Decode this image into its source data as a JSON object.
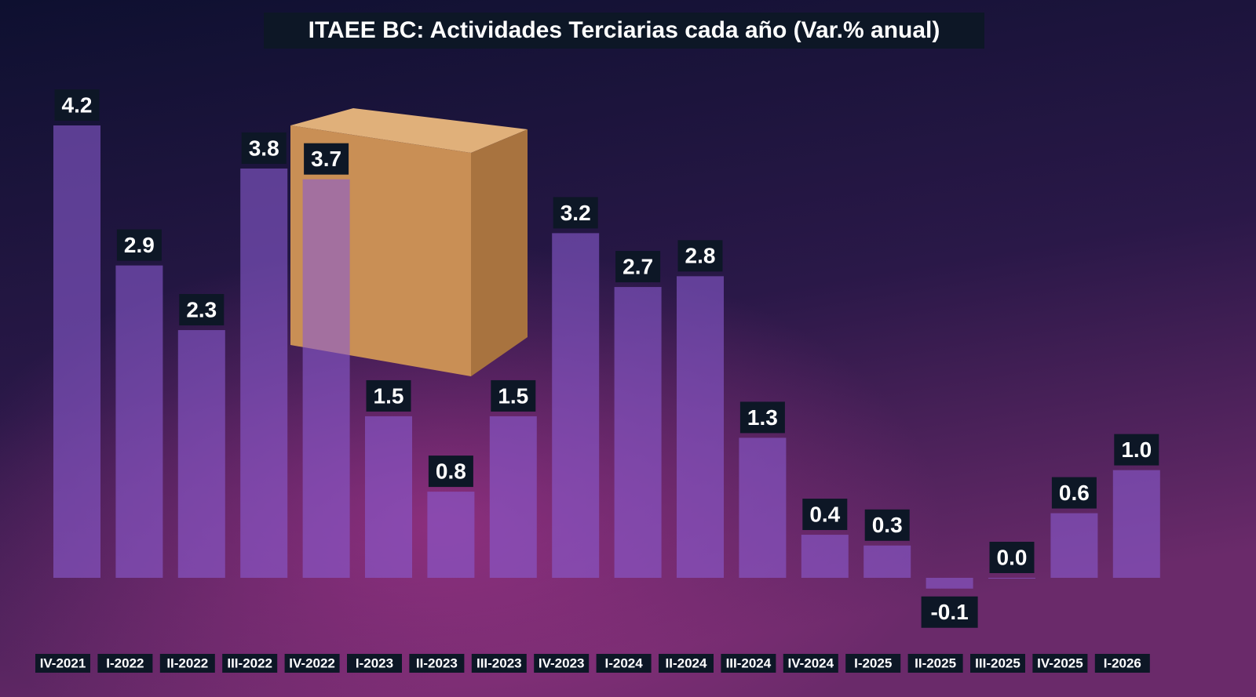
{
  "chart_data": {
    "type": "bar",
    "title": "ITAEE BC: Actividades Terciarias cada año (Var.% anual)",
    "categories": [
      "IV-2021",
      "I-2022",
      "II-2022",
      "III-2022",
      "IV-2022",
      "I-2023",
      "II-2023",
      "III-2023",
      "IV-2023",
      "I-2024",
      "II-2024",
      "III-2024",
      "IV-2024",
      "I-2025",
      "II-2025",
      "III-2025",
      "IV-2025",
      "I-2026"
    ],
    "values": [
      4.2,
      2.9,
      2.3,
      3.8,
      3.7,
      1.5,
      0.8,
      1.5,
      3.2,
      2.7,
      2.8,
      1.3,
      0.4,
      0.3,
      -0.1,
      0.0,
      0.6,
      1.0
    ],
    "value_labels": [
      "4.2",
      "2.9",
      "2.3",
      "3.8",
      "3.7",
      "1.5",
      "0.8",
      "1.5",
      "3.2",
      "2.7",
      "2.8",
      "1.3",
      "0.4",
      "0.3",
      "-0.1",
      "0.0",
      "0.6",
      "1.0"
    ],
    "color": "#8a5cd0"
  }
}
